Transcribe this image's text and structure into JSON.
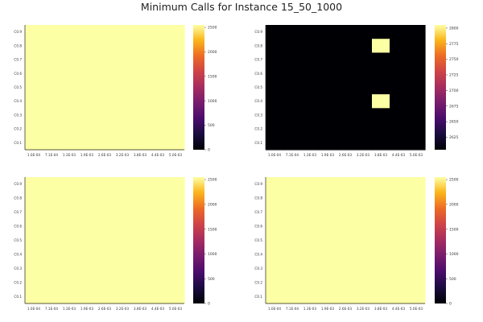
{
  "title": "Minimum Calls for Instance 15_50_1000",
  "chart_data": [
    {
      "type": "heatmap",
      "position": "top-left",
      "x_ticks": [
        "1.0E-04",
        "7.1E-04",
        "1.3E-03",
        "1.9E-03",
        "2.6E-03",
        "3.2E-03",
        "3.8E-03",
        "4.4E-03",
        "5.0E-03"
      ],
      "y_ticks": [
        "C0.9",
        "C0.8",
        "C0.7",
        "C0.6",
        "C0.5",
        "C0.4",
        "C0.3",
        "C0.2",
        "C0.1"
      ],
      "uniform_value": 2550,
      "highlight_cells": [],
      "colorbar": {
        "min": 0,
        "max": 2550,
        "ticks": [
          0,
          500,
          1000,
          1500,
          2000,
          2500
        ]
      }
    },
    {
      "type": "heatmap",
      "position": "top-right",
      "x_ticks": [
        "1.0E-04",
        "7.1E-04",
        "1.3E-03",
        "1.9E-03",
        "2.6E-03",
        "3.2E-03",
        "3.8E-03",
        "4.4E-03",
        "5.0E-03"
      ],
      "y_ticks": [
        "C0.9",
        "C0.8",
        "C0.7",
        "C0.6",
        "C0.5",
        "C0.4",
        "C0.3",
        "C0.2",
        "C0.1"
      ],
      "uniform_value": 2605,
      "highlight_cells": [
        {
          "x": "3.8E-03",
          "y": "C0.8",
          "value": 2805
        },
        {
          "x": "3.8E-03",
          "y": "C0.4",
          "value": 2805
        }
      ],
      "colorbar": {
        "min": 2605,
        "max": 2805,
        "ticks": [
          2625,
          2650,
          2675,
          2700,
          2725,
          2750,
          2775,
          2800
        ]
      }
    },
    {
      "type": "heatmap",
      "position": "bottom-left",
      "x_ticks": [
        "1.0E-04",
        "7.1E-04",
        "1.3E-03",
        "1.9E-03",
        "2.6E-03",
        "3.2E-03",
        "3.8E-03",
        "4.4E-03",
        "5.0E-03"
      ],
      "y_ticks": [
        "C0.9",
        "C0.8",
        "C0.7",
        "C0.6",
        "C0.5",
        "C0.4",
        "C0.3",
        "C0.2",
        "C0.1"
      ],
      "uniform_value": 2550,
      "highlight_cells": [],
      "colorbar": {
        "min": 0,
        "max": 2550,
        "ticks": [
          0,
          500,
          1000,
          1500,
          2000,
          2500
        ]
      }
    },
    {
      "type": "heatmap",
      "position": "bottom-right",
      "x_ticks": [
        "1.0E-04",
        "7.1E-04",
        "1.3E-03",
        "1.9E-03",
        "2.6E-03",
        "3.2E-03",
        "3.8E-03",
        "4.4E-03",
        "5.0E-03"
      ],
      "y_ticks": [
        "C0.9",
        "C0.8",
        "C0.7",
        "C0.6",
        "C0.5",
        "C0.4",
        "C0.3",
        "C0.2",
        "C0.1"
      ],
      "uniform_value": 2550,
      "highlight_cells": [],
      "colorbar": {
        "min": 0,
        "max": 2550,
        "ticks": [
          0,
          500,
          1000,
          1500,
          2000,
          2500
        ]
      }
    }
  ]
}
